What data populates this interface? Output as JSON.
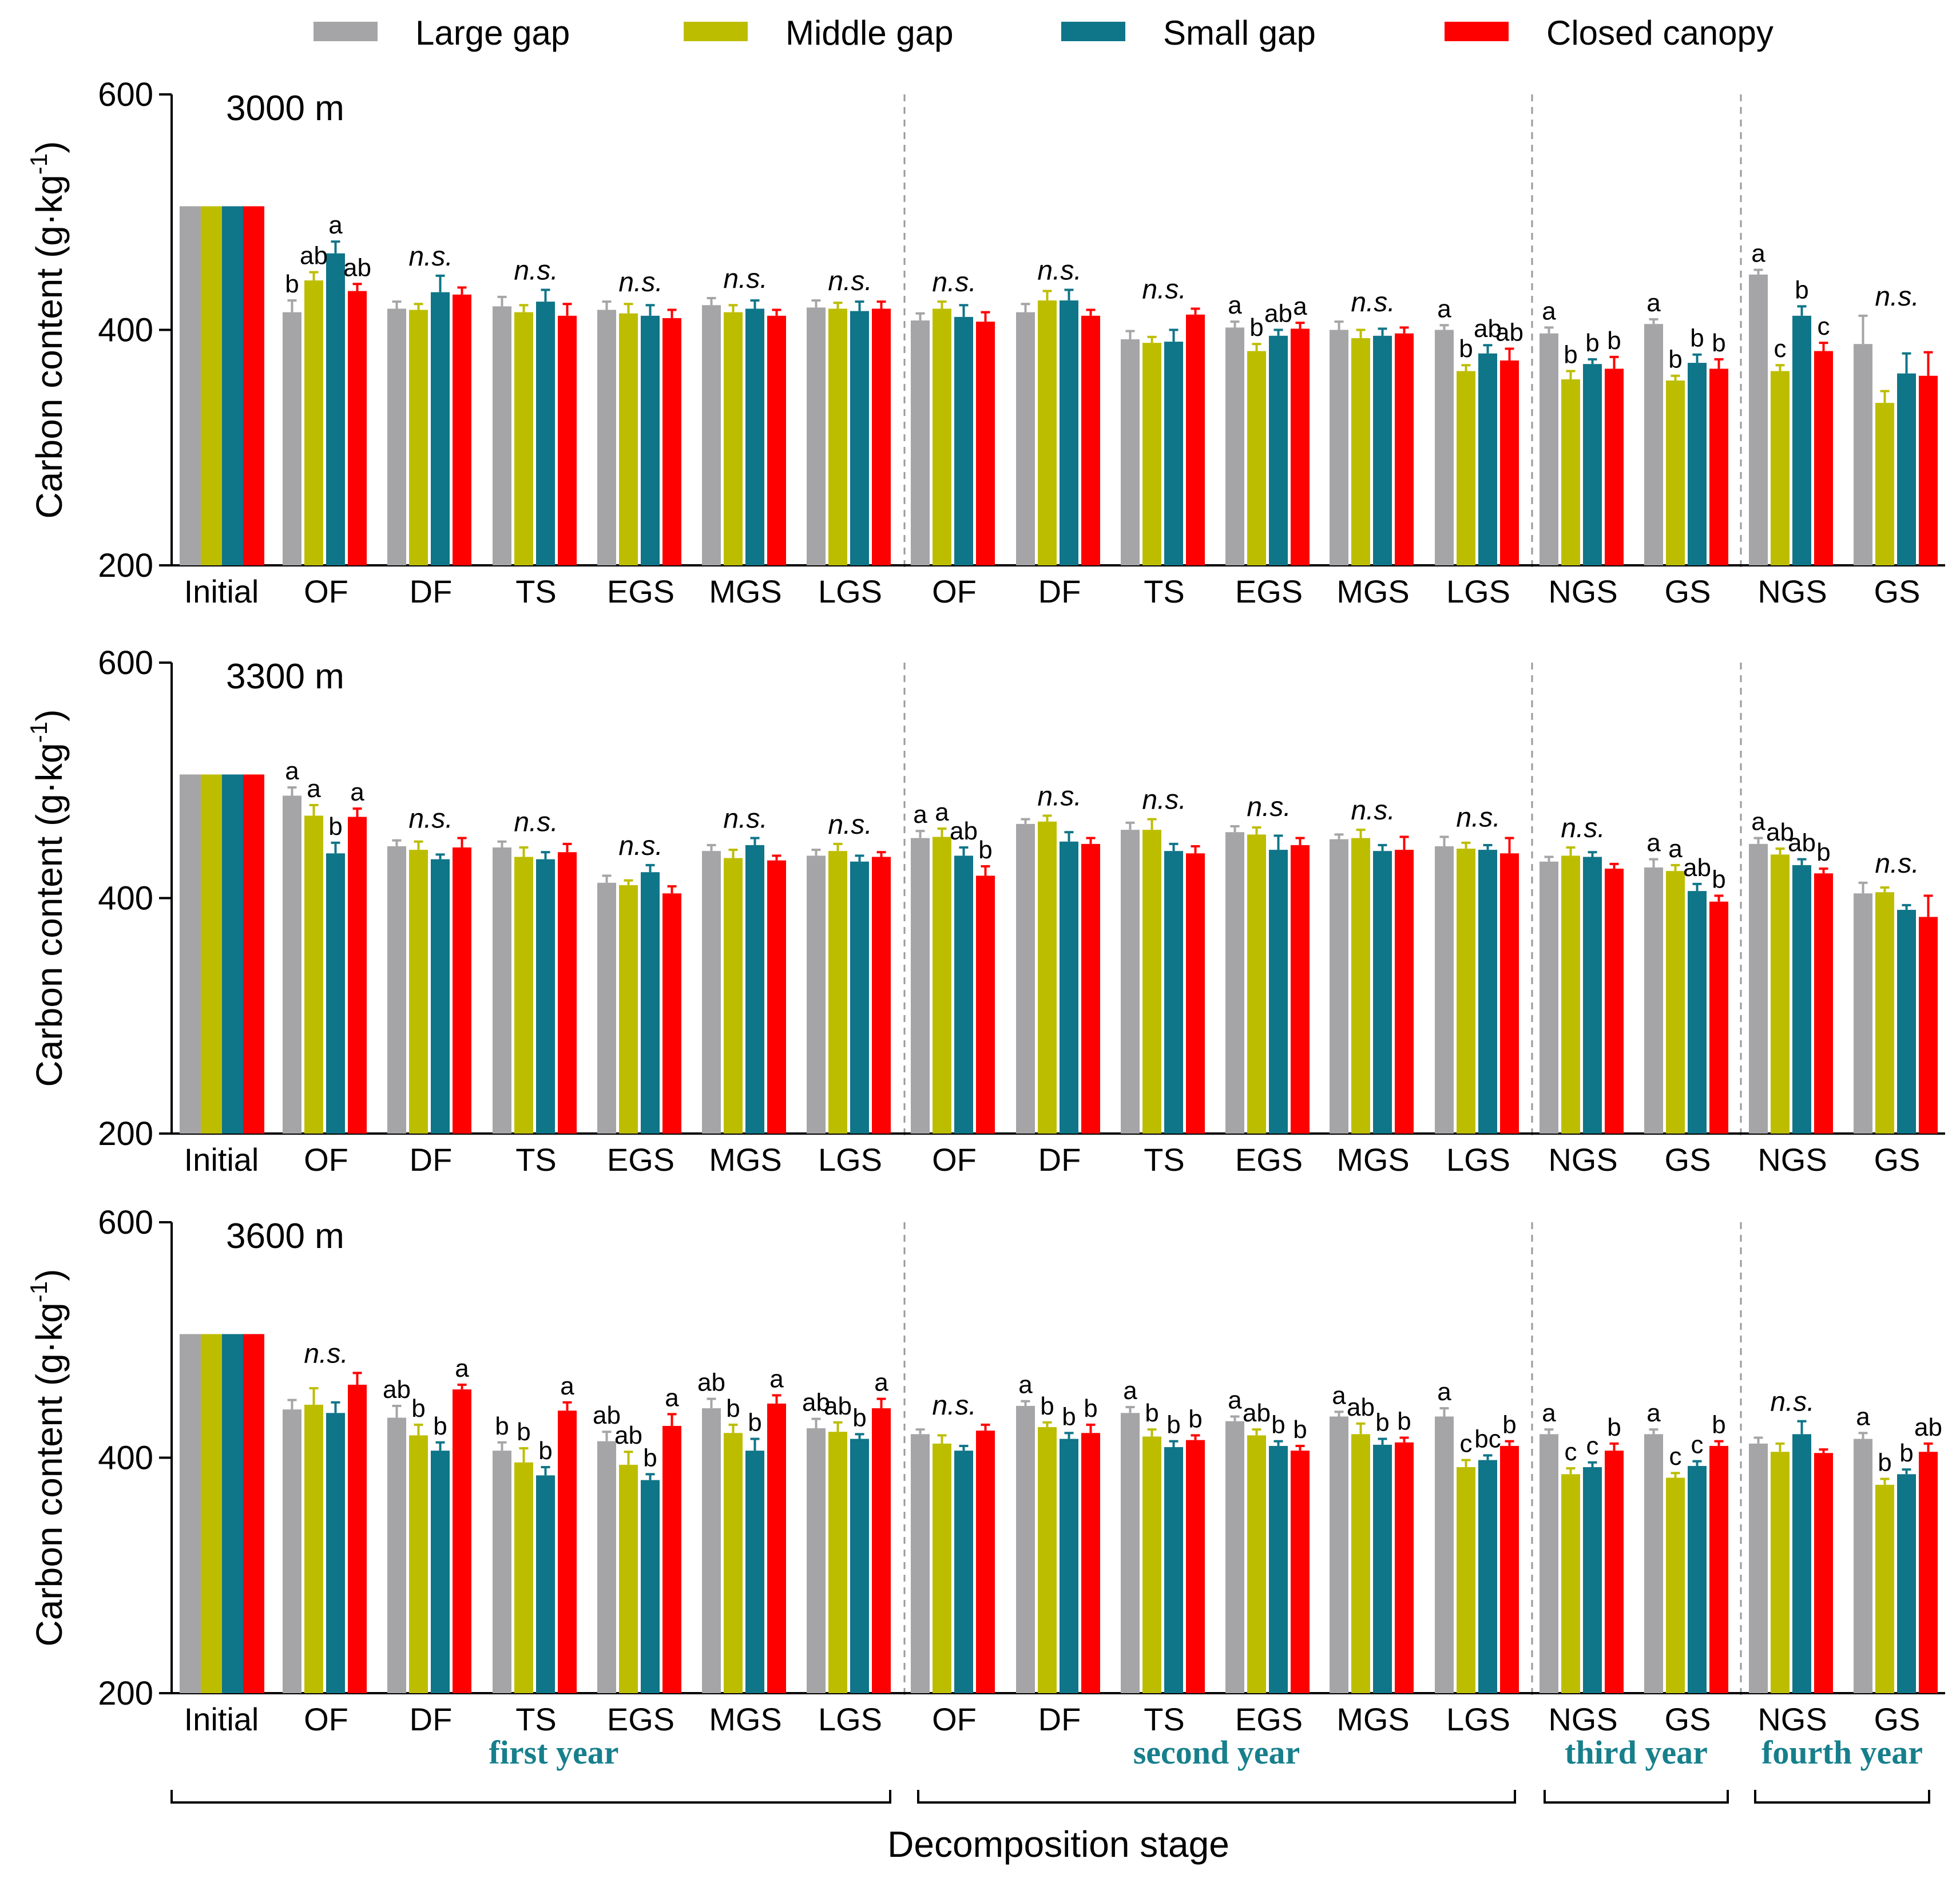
{
  "legend": [
    {
      "label": "Large gap",
      "color": "#a5a5a8"
    },
    {
      "label": "Middle gap",
      "color": "#bdbd00"
    },
    {
      "label": "Small gap",
      "color": "#0f7588"
    },
    {
      "label": "Closed canopy",
      "color": "#ff0000"
    }
  ],
  "axes": {
    "ylabel_text": "Carbon content (g·kg",
    "ylabel_sup": "-1",
    "ylabel_close": ")",
    "xlabel": "Decomposition stage",
    "yticks": [
      200,
      400,
      600
    ],
    "ylim": [
      200,
      600
    ]
  },
  "years": [
    {
      "label": "first year"
    },
    {
      "label": "second year"
    },
    {
      "label": "third year"
    },
    {
      "label": "fourth year"
    }
  ],
  "chart_data": [
    {
      "type": "bar",
      "title": "3000 m",
      "categories": [
        "Initial",
        "OF",
        "DF",
        "TS",
        "EGS",
        "MGS",
        "LGS",
        "OF",
        "DF",
        "TS",
        "EGS",
        "MGS",
        "LGS",
        "NGS",
        "GS",
        "NGS",
        "GS"
      ],
      "series": [
        {
          "name": "Large gap",
          "values": [
            505,
            415,
            418,
            420,
            417,
            421,
            419,
            408,
            415,
            392,
            402,
            400,
            400,
            397,
            405,
            447,
            388
          ],
          "errors": [
            0,
            10,
            6,
            8,
            7,
            6,
            6,
            6,
            7,
            7,
            5,
            7,
            4,
            5,
            4,
            4,
            24
          ]
        },
        {
          "name": "Middle gap",
          "values": [
            505,
            442,
            417,
            415,
            414,
            415,
            418,
            418,
            425,
            389,
            382,
            393,
            365,
            358,
            357,
            365,
            338
          ],
          "errors": [
            0,
            7,
            5,
            6,
            8,
            6,
            5,
            6,
            8,
            5,
            6,
            7,
            5,
            7,
            4,
            5,
            10
          ]
        },
        {
          "name": "Small gap",
          "values": [
            505,
            465,
            432,
            424,
            412,
            418,
            416,
            411,
            425,
            390,
            395,
            395,
            380,
            371,
            372,
            412,
            363
          ],
          "errors": [
            0,
            10,
            14,
            10,
            9,
            7,
            8,
            10,
            9,
            10,
            5,
            6,
            7,
            4,
            7,
            8,
            17
          ]
        },
        {
          "name": "Closed canopy",
          "values": [
            505,
            433,
            430,
            412,
            410,
            412,
            418,
            407,
            412,
            413,
            401,
            397,
            374,
            367,
            367,
            382,
            361
          ],
          "errors": [
            0,
            6,
            6,
            10,
            7,
            5,
            6,
            8,
            5,
            5,
            5,
            5,
            10,
            10,
            8,
            7,
            20
          ]
        }
      ],
      "sig": [
        null,
        [
          "b",
          "ab",
          "a",
          "ab"
        ],
        "n.s.",
        "n.s.",
        "n.s.",
        "n.s.",
        "n.s.",
        "n.s.",
        "n.s.",
        "n.s.",
        [
          "a",
          "b",
          "ab",
          "a"
        ],
        "n.s.",
        [
          "a",
          "b",
          "ab",
          "ab"
        ],
        [
          "a",
          "b",
          "b",
          "b"
        ],
        [
          "a",
          "b",
          "b",
          "b"
        ],
        [
          "a",
          "c",
          "b",
          "c"
        ],
        "n.s."
      ]
    },
    {
      "type": "bar",
      "title": "3300 m",
      "categories": [
        "Initial",
        "OF",
        "DF",
        "TS",
        "EGS",
        "MGS",
        "LGS",
        "OF",
        "DF",
        "TS",
        "EGS",
        "MGS",
        "LGS",
        "NGS",
        "GS",
        "NGS",
        "GS"
      ],
      "series": [
        {
          "name": "Large gap",
          "values": [
            505,
            487,
            444,
            443,
            413,
            440,
            436,
            451,
            463,
            458,
            456,
            450,
            444,
            431,
            426,
            446,
            404
          ],
          "errors": [
            0,
            7,
            5,
            5,
            6,
            5,
            5,
            6,
            4,
            6,
            5,
            4,
            8,
            4,
            7,
            5,
            9
          ]
        },
        {
          "name": "Middle gap",
          "values": [
            505,
            470,
            441,
            435,
            411,
            434,
            440,
            452,
            465,
            458,
            454,
            451,
            442,
            436,
            423,
            437,
            405
          ],
          "errors": [
            0,
            9,
            7,
            8,
            4,
            7,
            6,
            7,
            5,
            9,
            6,
            7,
            5,
            7,
            5,
            5,
            4
          ]
        },
        {
          "name": "Small gap",
          "values": [
            505,
            438,
            433,
            433,
            422,
            445,
            431,
            436,
            448,
            440,
            441,
            440,
            441,
            435,
            406,
            428,
            390
          ],
          "errors": [
            0,
            9,
            4,
            6,
            6,
            6,
            5,
            7,
            8,
            6,
            12,
            5,
            4,
            4,
            6,
            5,
            4
          ]
        },
        {
          "name": "Closed canopy",
          "values": [
            505,
            469,
            443,
            439,
            404,
            432,
            435,
            419,
            446,
            438,
            445,
            441,
            438,
            425,
            397,
            421,
            384
          ],
          "errors": [
            0,
            7,
            8,
            7,
            6,
            4,
            4,
            8,
            5,
            6,
            6,
            11,
            13,
            4,
            5,
            4,
            18
          ]
        }
      ],
      "sig": [
        null,
        [
          "a",
          "a",
          "b",
          "a"
        ],
        "n.s.",
        "n.s.",
        "n.s.",
        "n.s.",
        "n.s.",
        [
          "a",
          "a",
          "ab",
          "b"
        ],
        "n.s.",
        "n.s.",
        "n.s.",
        "n.s.",
        "n.s.",
        "n.s.",
        [
          "a",
          "a",
          "ab",
          "b"
        ],
        [
          "a",
          "ab",
          "ab",
          "b"
        ],
        "n.s."
      ]
    },
    {
      "type": "bar",
      "title": "3600 m",
      "categories": [
        "Initial",
        "OF",
        "DF",
        "TS",
        "EGS",
        "MGS",
        "LGS",
        "OF",
        "DF",
        "TS",
        "EGS",
        "MGS",
        "LGS",
        "NGS",
        "GS",
        "NGS",
        "GS"
      ],
      "series": [
        {
          "name": "Large gap",
          "values": [
            505,
            441,
            434,
            406,
            414,
            442,
            425,
            420,
            444,
            438,
            431,
            435,
            435,
            420,
            420,
            412,
            416
          ],
          "errors": [
            0,
            8,
            10,
            7,
            8,
            8,
            8,
            4,
            4,
            5,
            4,
            4,
            7,
            4,
            4,
            5,
            5
          ]
        },
        {
          "name": "Middle gap",
          "values": [
            505,
            445,
            419,
            396,
            394,
            421,
            422,
            412,
            426,
            418,
            419,
            420,
            392,
            386,
            383,
            405,
            377
          ],
          "errors": [
            0,
            14,
            9,
            12,
            11,
            7,
            8,
            7,
            4,
            6,
            5,
            9,
            6,
            5,
            4,
            7,
            5
          ]
        },
        {
          "name": "Small gap",
          "values": [
            505,
            438,
            406,
            385,
            381,
            406,
            416,
            406,
            416,
            409,
            410,
            411,
            398,
            392,
            393,
            420,
            386
          ],
          "errors": [
            0,
            9,
            7,
            7,
            5,
            10,
            4,
            4,
            5,
            5,
            4,
            5,
            4,
            4,
            4,
            11,
            4
          ]
        },
        {
          "name": "Closed canopy",
          "values": [
            505,
            462,
            458,
            440,
            427,
            446,
            442,
            423,
            421,
            415,
            406,
            413,
            410,
            406,
            410,
            404,
            405
          ],
          "errors": [
            0,
            10,
            4,
            7,
            10,
            7,
            8,
            5,
            7,
            4,
            4,
            4,
            4,
            6,
            4,
            3,
            7
          ]
        }
      ],
      "sig": [
        null,
        "n.s.",
        [
          "ab",
          "b",
          "b",
          "a"
        ],
        [
          "b",
          "b",
          "b",
          "a"
        ],
        [
          "ab",
          "ab",
          "b",
          "a"
        ],
        [
          "ab",
          "b",
          "b",
          "a"
        ],
        [
          "ab",
          "ab",
          "b",
          "a"
        ],
        "n.s.",
        [
          "a",
          "b",
          "b",
          "b"
        ],
        [
          "a",
          "b",
          "b",
          "b"
        ],
        [
          "a",
          "ab",
          "b",
          "b"
        ],
        [
          "a",
          "ab",
          "b",
          "b"
        ],
        [
          "a",
          "c",
          "bc",
          "b"
        ],
        [
          "a",
          "c",
          "c",
          "b"
        ],
        [
          "a",
          "c",
          "c",
          "b"
        ],
        "n.s.",
        [
          "a",
          "b",
          "b",
          "ab"
        ]
      ]
    }
  ]
}
